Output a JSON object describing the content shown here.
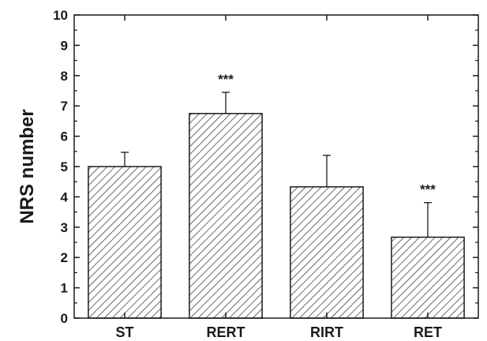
{
  "chart_data": {
    "type": "bar",
    "title": "",
    "xlabel": "",
    "ylabel": "NRS number",
    "ylim": [
      0,
      10
    ],
    "yticks": [
      "0",
      "1",
      "2",
      "3",
      "4",
      "5",
      "6",
      "7",
      "8",
      "9",
      "10"
    ],
    "categories": [
      "ST",
      "RERT",
      "RIRT",
      "RET"
    ],
    "values": [
      5.0,
      6.75,
      4.33,
      2.67
    ],
    "error_plus": [
      0.47,
      0.7,
      1.04,
      1.14
    ],
    "annotations": [
      "",
      "***",
      "",
      "***"
    ],
    "grid": false,
    "bar_fill": "diagonal-hatch",
    "colors": {
      "line": "#1a1a1a",
      "background": "#ffffff"
    }
  }
}
